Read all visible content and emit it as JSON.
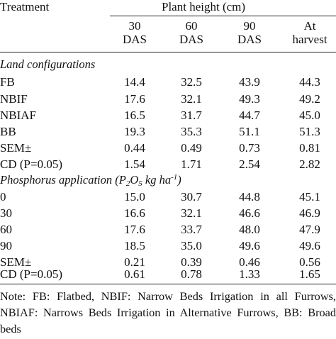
{
  "header": {
    "treatment_label": "Treatment",
    "group_label": "Plant height (cm)",
    "columns": [
      {
        "line1": "30",
        "line2": "DAS"
      },
      {
        "line1": "60",
        "line2": "DAS"
      },
      {
        "line1": "90",
        "line2": "DAS"
      },
      {
        "line1": "At",
        "line2": "harvest"
      }
    ]
  },
  "sections": [
    {
      "title": "Land configurations",
      "rows": [
        {
          "label": "FB",
          "values": [
            "14.4",
            "32.5",
            "43.9",
            "44.3"
          ]
        },
        {
          "label": "NBIF",
          "values": [
            "17.6",
            "32.1",
            "49.3",
            "49.2"
          ]
        },
        {
          "label": "NBIAF",
          "values": [
            "16.5",
            "31.7",
            "44.7",
            "45.0"
          ]
        },
        {
          "label": "BB",
          "values": [
            "19.3",
            "35.3",
            "51.1",
            "51.3"
          ]
        },
        {
          "label": "SEM±",
          "values": [
            "0.44",
            "0.49",
            "0.73",
            "0.81"
          ]
        },
        {
          "label": "CD (P=0.05)",
          "values": [
            "1.54",
            "1.71",
            "2.54",
            "2.82"
          ]
        }
      ]
    },
    {
      "title_prefix": "Phosphorus application (P",
      "title_sub": "2",
      "title_mid": "O",
      "title_sub2": "5",
      "title_unit": " kg ha",
      "title_sup": "-1",
      "title_suffix": ")",
      "rows": [
        {
          "label": "0",
          "values": [
            "15.0",
            "30.7",
            "44.8",
            "45.1"
          ]
        },
        {
          "label": "30",
          "values": [
            "16.6",
            "32.1",
            "46.6",
            "46.9"
          ]
        },
        {
          "label": "60",
          "values": [
            "17.6",
            "33.7",
            "48.0",
            "47.9"
          ]
        },
        {
          "label": "90",
          "values": [
            "18.5",
            "35.0",
            "49.6",
            "49.6"
          ]
        },
        {
          "label": "SEM±",
          "values": [
            "0.21",
            "0.39",
            "0.46",
            "0.56"
          ]
        },
        {
          "label": "CD (P=0.05)",
          "values": [
            "0.61",
            "0.78",
            "1.33",
            "1.65"
          ]
        }
      ]
    }
  ],
  "note": "Note: FB: Flatbed, NBIF: Narrow Beds Irrigation in all Furrows, NBIAF: Narrows Beds Irrigation in Alternative Furrows, BB: Broad beds"
}
